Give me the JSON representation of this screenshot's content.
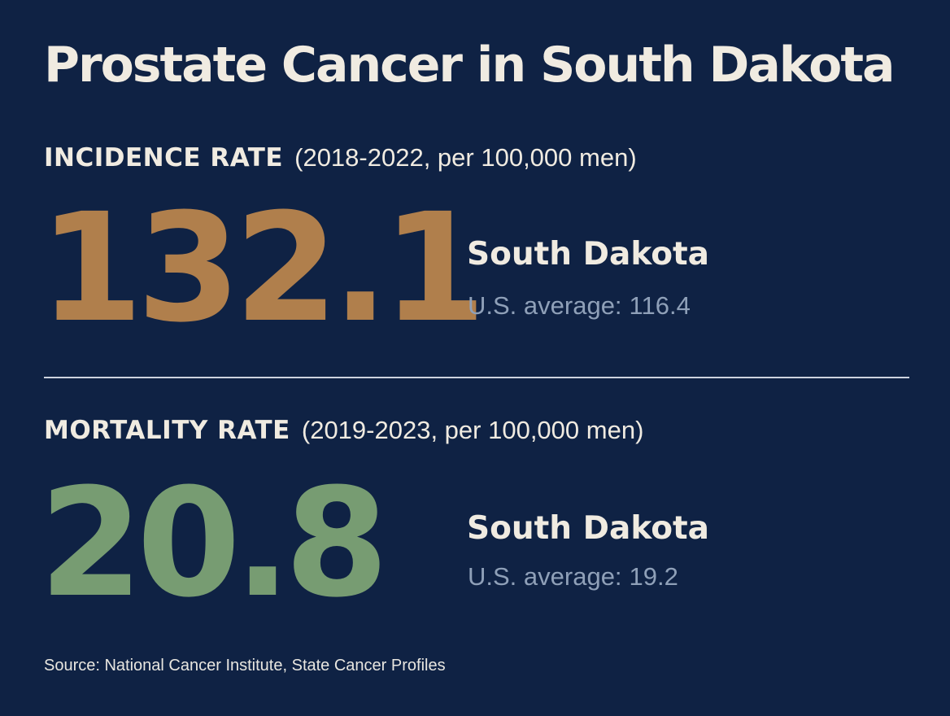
{
  "title": "Prostate Cancer in South Dakota",
  "colors": {
    "background": "#0f2244",
    "text": "#f0ebe1",
    "incidence_value": "#b07f4c",
    "mortality_value": "#779c72",
    "us_average_text": "#8fa0b8",
    "divider": "#cdd3de"
  },
  "incidence": {
    "label": "INCIDENCE RATE",
    "period": "(2018-2022, per 100,000 men)",
    "value": "132.1",
    "region": "South Dakota",
    "us_average_label": "U.S. average:",
    "us_average_value": "116.4"
  },
  "mortality": {
    "label": "MORTALITY RATE",
    "period": "(2019-2023, per 100,000 men)",
    "value": "20.8",
    "region": "South Dakota",
    "us_average_label": "U.S. average:",
    "us_average_value": "19.2"
  },
  "source": "Source: National Cancer Institute, State Cancer Profiles"
}
